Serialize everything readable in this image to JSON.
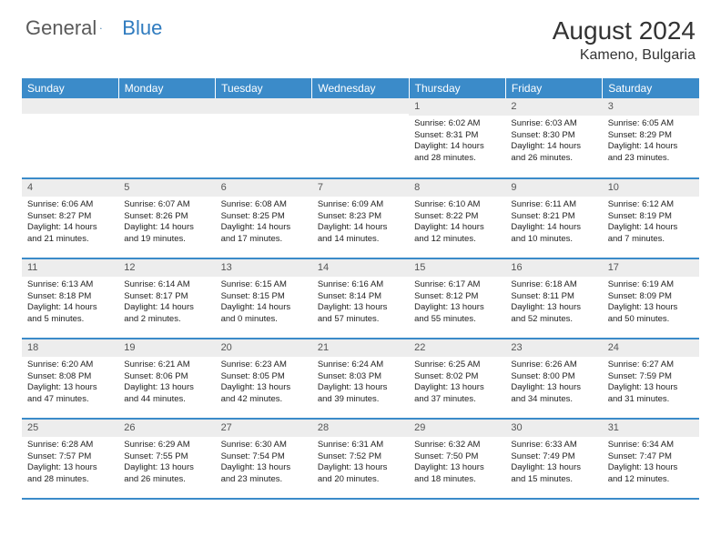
{
  "logo": {
    "text_general": "General",
    "text_blue": "Blue",
    "icon_color_dark": "#1f5a8a",
    "icon_color_light": "#3b8bc9"
  },
  "header": {
    "month_title": "August 2024",
    "location": "Kameno, Bulgaria"
  },
  "styling": {
    "header_bg": "#3b8bc9",
    "header_text": "#ffffff",
    "daynum_bg": "#ededed",
    "daynum_text": "#555555",
    "cell_border": "#3b8bc9",
    "body_text": "#222222",
    "background": "#ffffff",
    "font_family": "Arial",
    "th_fontsize": 12,
    "cell_fontsize": 9.5
  },
  "day_labels": [
    "Sunday",
    "Monday",
    "Tuesday",
    "Wednesday",
    "Thursday",
    "Friday",
    "Saturday"
  ],
  "weeks": [
    [
      {
        "num": "",
        "lines": []
      },
      {
        "num": "",
        "lines": []
      },
      {
        "num": "",
        "lines": []
      },
      {
        "num": "",
        "lines": []
      },
      {
        "num": "1",
        "lines": [
          "Sunrise: 6:02 AM",
          "Sunset: 8:31 PM",
          "Daylight: 14 hours and 28 minutes."
        ]
      },
      {
        "num": "2",
        "lines": [
          "Sunrise: 6:03 AM",
          "Sunset: 8:30 PM",
          "Daylight: 14 hours and 26 minutes."
        ]
      },
      {
        "num": "3",
        "lines": [
          "Sunrise: 6:05 AM",
          "Sunset: 8:29 PM",
          "Daylight: 14 hours and 23 minutes."
        ]
      }
    ],
    [
      {
        "num": "4",
        "lines": [
          "Sunrise: 6:06 AM",
          "Sunset: 8:27 PM",
          "Daylight: 14 hours and 21 minutes."
        ]
      },
      {
        "num": "5",
        "lines": [
          "Sunrise: 6:07 AM",
          "Sunset: 8:26 PM",
          "Daylight: 14 hours and 19 minutes."
        ]
      },
      {
        "num": "6",
        "lines": [
          "Sunrise: 6:08 AM",
          "Sunset: 8:25 PM",
          "Daylight: 14 hours and 17 minutes."
        ]
      },
      {
        "num": "7",
        "lines": [
          "Sunrise: 6:09 AM",
          "Sunset: 8:23 PM",
          "Daylight: 14 hours and 14 minutes."
        ]
      },
      {
        "num": "8",
        "lines": [
          "Sunrise: 6:10 AM",
          "Sunset: 8:22 PM",
          "Daylight: 14 hours and 12 minutes."
        ]
      },
      {
        "num": "9",
        "lines": [
          "Sunrise: 6:11 AM",
          "Sunset: 8:21 PM",
          "Daylight: 14 hours and 10 minutes."
        ]
      },
      {
        "num": "10",
        "lines": [
          "Sunrise: 6:12 AM",
          "Sunset: 8:19 PM",
          "Daylight: 14 hours and 7 minutes."
        ]
      }
    ],
    [
      {
        "num": "11",
        "lines": [
          "Sunrise: 6:13 AM",
          "Sunset: 8:18 PM",
          "Daylight: 14 hours and 5 minutes."
        ]
      },
      {
        "num": "12",
        "lines": [
          "Sunrise: 6:14 AM",
          "Sunset: 8:17 PM",
          "Daylight: 14 hours and 2 minutes."
        ]
      },
      {
        "num": "13",
        "lines": [
          "Sunrise: 6:15 AM",
          "Sunset: 8:15 PM",
          "Daylight: 14 hours and 0 minutes."
        ]
      },
      {
        "num": "14",
        "lines": [
          "Sunrise: 6:16 AM",
          "Sunset: 8:14 PM",
          "Daylight: 13 hours and 57 minutes."
        ]
      },
      {
        "num": "15",
        "lines": [
          "Sunrise: 6:17 AM",
          "Sunset: 8:12 PM",
          "Daylight: 13 hours and 55 minutes."
        ]
      },
      {
        "num": "16",
        "lines": [
          "Sunrise: 6:18 AM",
          "Sunset: 8:11 PM",
          "Daylight: 13 hours and 52 minutes."
        ]
      },
      {
        "num": "17",
        "lines": [
          "Sunrise: 6:19 AM",
          "Sunset: 8:09 PM",
          "Daylight: 13 hours and 50 minutes."
        ]
      }
    ],
    [
      {
        "num": "18",
        "lines": [
          "Sunrise: 6:20 AM",
          "Sunset: 8:08 PM",
          "Daylight: 13 hours and 47 minutes."
        ]
      },
      {
        "num": "19",
        "lines": [
          "Sunrise: 6:21 AM",
          "Sunset: 8:06 PM",
          "Daylight: 13 hours and 44 minutes."
        ]
      },
      {
        "num": "20",
        "lines": [
          "Sunrise: 6:23 AM",
          "Sunset: 8:05 PM",
          "Daylight: 13 hours and 42 minutes."
        ]
      },
      {
        "num": "21",
        "lines": [
          "Sunrise: 6:24 AM",
          "Sunset: 8:03 PM",
          "Daylight: 13 hours and 39 minutes."
        ]
      },
      {
        "num": "22",
        "lines": [
          "Sunrise: 6:25 AM",
          "Sunset: 8:02 PM",
          "Daylight: 13 hours and 37 minutes."
        ]
      },
      {
        "num": "23",
        "lines": [
          "Sunrise: 6:26 AM",
          "Sunset: 8:00 PM",
          "Daylight: 13 hours and 34 minutes."
        ]
      },
      {
        "num": "24",
        "lines": [
          "Sunrise: 6:27 AM",
          "Sunset: 7:59 PM",
          "Daylight: 13 hours and 31 minutes."
        ]
      }
    ],
    [
      {
        "num": "25",
        "lines": [
          "Sunrise: 6:28 AM",
          "Sunset: 7:57 PM",
          "Daylight: 13 hours and 28 minutes."
        ]
      },
      {
        "num": "26",
        "lines": [
          "Sunrise: 6:29 AM",
          "Sunset: 7:55 PM",
          "Daylight: 13 hours and 26 minutes."
        ]
      },
      {
        "num": "27",
        "lines": [
          "Sunrise: 6:30 AM",
          "Sunset: 7:54 PM",
          "Daylight: 13 hours and 23 minutes."
        ]
      },
      {
        "num": "28",
        "lines": [
          "Sunrise: 6:31 AM",
          "Sunset: 7:52 PM",
          "Daylight: 13 hours and 20 minutes."
        ]
      },
      {
        "num": "29",
        "lines": [
          "Sunrise: 6:32 AM",
          "Sunset: 7:50 PM",
          "Daylight: 13 hours and 18 minutes."
        ]
      },
      {
        "num": "30",
        "lines": [
          "Sunrise: 6:33 AM",
          "Sunset: 7:49 PM",
          "Daylight: 13 hours and 15 minutes."
        ]
      },
      {
        "num": "31",
        "lines": [
          "Sunrise: 6:34 AM",
          "Sunset: 7:47 PM",
          "Daylight: 13 hours and 12 minutes."
        ]
      }
    ]
  ]
}
